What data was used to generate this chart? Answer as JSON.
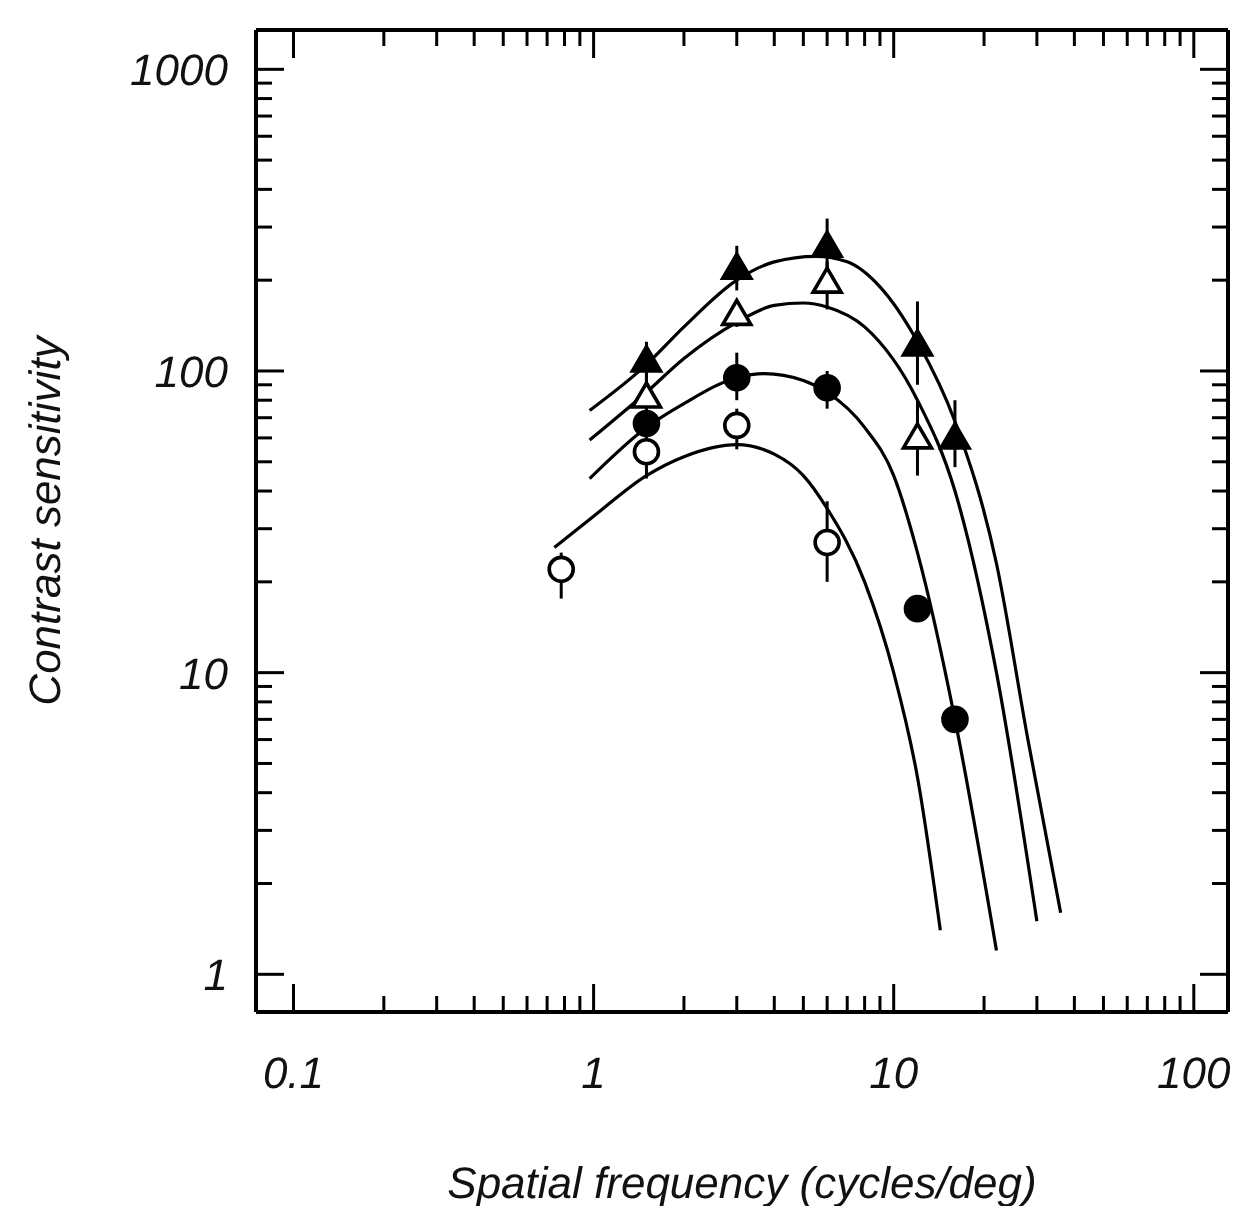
{
  "chart_data": {
    "type": "scatter",
    "xlabel": "Spatial frequency (cycles/deg)",
    "ylabel": "Contrast sensitivity",
    "log": "xy",
    "grid": false,
    "legend": false,
    "xlim": [
      0.075,
      130
    ],
    "ylim": [
      0.75,
      1350
    ],
    "xticks": [
      0.1,
      {
        "value": 0.2,
        "label": null
      },
      {
        "value": 0.3,
        "label": null
      },
      {
        "value": 0.4,
        "label": null
      },
      {
        "value": 0.5,
        "label": null
      },
      {
        "value": 0.6,
        "label": null
      },
      {
        "value": 0.7,
        "label": null
      },
      {
        "value": 0.8,
        "label": null
      },
      {
        "value": 0.9,
        "label": null
      },
      1,
      {
        "value": 2,
        "label": null
      },
      {
        "value": 3,
        "label": null
      },
      {
        "value": 4,
        "label": null
      },
      {
        "value": 5,
        "label": null
      },
      {
        "value": 6,
        "label": null
      },
      {
        "value": 7,
        "label": null
      },
      {
        "value": 8,
        "label": null
      },
      {
        "value": 9,
        "label": null
      },
      10,
      {
        "value": 20,
        "label": null
      },
      {
        "value": 30,
        "label": null
      },
      {
        "value": 40,
        "label": null
      },
      {
        "value": 50,
        "label": null
      },
      {
        "value": 60,
        "label": null
      },
      {
        "value": 70,
        "label": null
      },
      {
        "value": 80,
        "label": null
      },
      {
        "value": 90,
        "label": null
      },
      100
    ],
    "yticks": [
      1,
      {
        "value": 2,
        "label": null
      },
      {
        "value": 3,
        "label": null
      },
      {
        "value": 4,
        "label": null
      },
      {
        "value": 5,
        "label": null
      },
      {
        "value": 6,
        "label": null
      },
      {
        "value": 7,
        "label": null
      },
      {
        "value": 8,
        "label": null
      },
      {
        "value": 9,
        "label": null
      },
      10,
      {
        "value": 20,
        "label": null
      },
      {
        "value": 30,
        "label": null
      },
      {
        "value": 40,
        "label": null
      },
      {
        "value": 50,
        "label": null
      },
      {
        "value": 60,
        "label": null
      },
      {
        "value": 70,
        "label": null
      },
      {
        "value": 80,
        "label": null
      },
      {
        "value": 90,
        "label": null
      },
      100,
      {
        "value": 200,
        "label": null
      },
      {
        "value": 300,
        "label": null
      },
      {
        "value": 400,
        "label": null
      },
      {
        "value": 500,
        "label": null
      },
      {
        "value": 600,
        "label": null
      },
      {
        "value": 700,
        "label": null
      },
      {
        "value": 800,
        "label": null
      },
      {
        "value": 900,
        "label": null
      },
      1000
    ],
    "series": [
      {
        "marker": "triangle",
        "color": "#000000",
        "x": [
          1.5,
          3,
          6,
          12,
          16
        ],
        "values": [
          108,
          219,
          259,
          122,
          60
        ],
        "errors": [
          [
            92,
            125
          ],
          [
            185,
            260
          ],
          [
            210,
            320
          ],
          [
            90,
            170
          ],
          [
            48,
            80
          ]
        ]
      },
      {
        "marker": "triangle",
        "color": "#ffffff",
        "x": [
          1.5,
          3,
          6,
          12
        ],
        "values": [
          82,
          154,
          197,
          60
        ],
        "errors": [
          [
            70,
            100
          ],
          [
            140,
            170
          ],
          [
            160,
            230
          ],
          [
            45,
            80
          ]
        ]
      },
      {
        "marker": "circle",
        "color": "#000000",
        "x": [
          1.5,
          3,
          6,
          12,
          16
        ],
        "values": [
          67,
          95,
          88,
          16.3,
          7
        ],
        "errors": [
          [
            58,
            78
          ],
          [
            80,
            115
          ],
          [
            75,
            100
          ],
          null,
          null
        ]
      },
      {
        "marker": "circle",
        "color": "#ffffff",
        "x": [
          0.78,
          1.5,
          3,
          6
        ],
        "values": [
          22,
          54,
          66,
          27
        ],
        "errors": [
          [
            17.6,
            25
          ],
          [
            44,
            62
          ],
          [
            55,
            75
          ],
          [
            20,
            37
          ]
        ]
      },
      {
        "type": "line",
        "marker": "none",
        "line_style": "solid",
        "color": "#000000",
        "x": [
          0.97,
          1.5,
          2,
          3,
          4,
          5.5,
          7,
          9,
          12,
          16,
          22,
          28,
          36
        ],
        "values": [
          74,
          105,
          140,
          200,
          230,
          240,
          230,
          190,
          125,
          68,
          23,
          6,
          1.6
        ]
      },
      {
        "type": "line",
        "marker": "none",
        "line_style": "solid",
        "color": "#000000",
        "x": [
          0.97,
          1.5,
          2,
          3,
          4,
          5,
          6,
          8,
          12,
          16,
          22,
          30
        ],
        "values": [
          59,
          85,
          110,
          145,
          165,
          168,
          163,
          140,
          80,
          40,
          10,
          1.5
        ]
      },
      {
        "type": "line",
        "marker": "none",
        "line_style": "solid",
        "color": "#000000",
        "x": [
          0.97,
          1.5,
          2,
          3,
          3.7,
          5,
          6,
          8,
          10,
          12,
          16,
          22
        ],
        "values": [
          44,
          65,
          78,
          95,
          98,
          93,
          85,
          65,
          45,
          25,
          7,
          1.2
        ]
      },
      {
        "type": "line",
        "marker": "none",
        "line_style": "solid",
        "color": "#000000",
        "x": [
          0.74,
          1,
          1.5,
          2,
          3,
          4,
          5,
          6,
          8,
          10,
          12,
          14.3
        ],
        "values": [
          26,
          33,
          45,
          52,
          57,
          53,
          45,
          35,
          20,
          10,
          4.5,
          1.4
        ]
      }
    ]
  }
}
